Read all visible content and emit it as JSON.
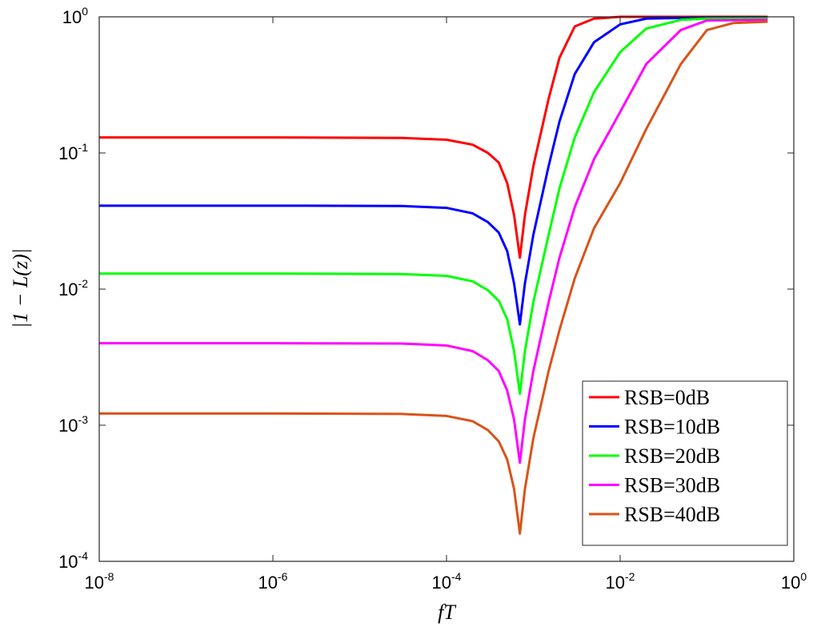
{
  "chart_data": {
    "type": "line",
    "xscale": "log",
    "yscale": "log",
    "xlim": [
      1e-08,
      1
    ],
    "ylim": [
      0.0001,
      1
    ],
    "xlabel": "fT",
    "ylabel": "|1 − L(z)|",
    "xticks": [
      {
        "value": 1e-08,
        "base": "10",
        "exp": "-8"
      },
      {
        "value": 1e-06,
        "base": "10",
        "exp": "-6"
      },
      {
        "value": 0.0001,
        "base": "10",
        "exp": "-4"
      },
      {
        "value": 0.01,
        "base": "10",
        "exp": "-2"
      },
      {
        "value": 1,
        "base": "10",
        "exp": "0"
      }
    ],
    "yticks": [
      {
        "value": 0.0001,
        "base": "10",
        "exp": "-4"
      },
      {
        "value": 0.001,
        "base": "10",
        "exp": "-3"
      },
      {
        "value": 0.01,
        "base": "10",
        "exp": "-2"
      },
      {
        "value": 0.1,
        "base": "10",
        "exp": "-1"
      },
      {
        "value": 1,
        "base": "10",
        "exp": "0"
      }
    ],
    "grid": false,
    "legend_position": "bottom-right",
    "series": [
      {
        "name": "RSB=0dB",
        "color": "#ff0000",
        "points": [
          [
            1e-08,
            0.13
          ],
          [
            1e-06,
            0.13
          ],
          [
            3e-05,
            0.129
          ],
          [
            0.0001,
            0.125
          ],
          [
            0.0002,
            0.115
          ],
          [
            0.0003,
            0.1
          ],
          [
            0.0004,
            0.085
          ],
          [
            0.0005,
            0.06
          ],
          [
            0.0006,
            0.035
          ],
          [
            0.0007,
            0.017
          ],
          [
            0.0008,
            0.035
          ],
          [
            0.001,
            0.08
          ],
          [
            0.0015,
            0.25
          ],
          [
            0.002,
            0.5
          ],
          [
            0.003,
            0.85
          ],
          [
            0.005,
            0.97
          ],
          [
            0.01,
            1.0
          ],
          [
            0.1,
            1.0
          ],
          [
            0.5,
            1.0
          ]
        ]
      },
      {
        "name": "RSB=10dB",
        "color": "#0000ff",
        "points": [
          [
            1e-08,
            0.041
          ],
          [
            1e-06,
            0.041
          ],
          [
            3e-05,
            0.0408
          ],
          [
            0.0001,
            0.0395
          ],
          [
            0.0002,
            0.036
          ],
          [
            0.0003,
            0.031
          ],
          [
            0.0004,
            0.026
          ],
          [
            0.0005,
            0.019
          ],
          [
            0.0006,
            0.011
          ],
          [
            0.0007,
            0.0055
          ],
          [
            0.0008,
            0.011
          ],
          [
            0.001,
            0.025
          ],
          [
            0.0015,
            0.08
          ],
          [
            0.002,
            0.17
          ],
          [
            0.003,
            0.38
          ],
          [
            0.005,
            0.65
          ],
          [
            0.01,
            0.88
          ],
          [
            0.02,
            0.97
          ],
          [
            0.1,
            0.99
          ],
          [
            0.5,
            0.99
          ]
        ]
      },
      {
        "name": "RSB=20dB",
        "color": "#00ff00",
        "points": [
          [
            1e-08,
            0.013
          ],
          [
            1e-06,
            0.013
          ],
          [
            3e-05,
            0.0129
          ],
          [
            0.0001,
            0.0125
          ],
          [
            0.0002,
            0.0114
          ],
          [
            0.0003,
            0.0098
          ],
          [
            0.0004,
            0.0082
          ],
          [
            0.0005,
            0.006
          ],
          [
            0.0006,
            0.0035
          ],
          [
            0.0007,
            0.0017
          ],
          [
            0.0008,
            0.0035
          ],
          [
            0.001,
            0.008
          ],
          [
            0.0015,
            0.025
          ],
          [
            0.002,
            0.055
          ],
          [
            0.003,
            0.13
          ],
          [
            0.005,
            0.28
          ],
          [
            0.01,
            0.55
          ],
          [
            0.02,
            0.82
          ],
          [
            0.05,
            0.95
          ],
          [
            0.1,
            0.97
          ],
          [
            0.5,
            0.97
          ]
        ]
      },
      {
        "name": "RSB=30dB",
        "color": "#ff00ff",
        "points": [
          [
            1e-08,
            0.004
          ],
          [
            1e-06,
            0.004
          ],
          [
            3e-05,
            0.00398
          ],
          [
            0.0001,
            0.00385
          ],
          [
            0.0002,
            0.0035
          ],
          [
            0.0003,
            0.003
          ],
          [
            0.0004,
            0.0025
          ],
          [
            0.0005,
            0.0018
          ],
          [
            0.0006,
            0.0011
          ],
          [
            0.0007,
            0.00053
          ],
          [
            0.0008,
            0.0011
          ],
          [
            0.001,
            0.0025
          ],
          [
            0.0015,
            0.008
          ],
          [
            0.002,
            0.017
          ],
          [
            0.003,
            0.04
          ],
          [
            0.005,
            0.09
          ],
          [
            0.01,
            0.2
          ],
          [
            0.02,
            0.45
          ],
          [
            0.05,
            0.8
          ],
          [
            0.1,
            0.94
          ],
          [
            0.5,
            0.95
          ]
        ]
      },
      {
        "name": "RSB=40dB",
        "color": "#d95319",
        "points": [
          [
            1e-08,
            0.00122
          ],
          [
            1e-06,
            0.00122
          ],
          [
            3e-05,
            0.00121
          ],
          [
            0.0001,
            0.00117
          ],
          [
            0.0002,
            0.00107
          ],
          [
            0.0003,
            0.00092
          ],
          [
            0.0004,
            0.00076
          ],
          [
            0.0005,
            0.00056
          ],
          [
            0.0006,
            0.00034
          ],
          [
            0.0007,
            0.00016
          ],
          [
            0.0008,
            0.00034
          ],
          [
            0.001,
            0.0008
          ],
          [
            0.0015,
            0.0025
          ],
          [
            0.002,
            0.005
          ],
          [
            0.003,
            0.012
          ],
          [
            0.005,
            0.028
          ],
          [
            0.01,
            0.06
          ],
          [
            0.02,
            0.15
          ],
          [
            0.05,
            0.45
          ],
          [
            0.1,
            0.8
          ],
          [
            0.2,
            0.9
          ],
          [
            0.5,
            0.92
          ]
        ]
      }
    ]
  }
}
